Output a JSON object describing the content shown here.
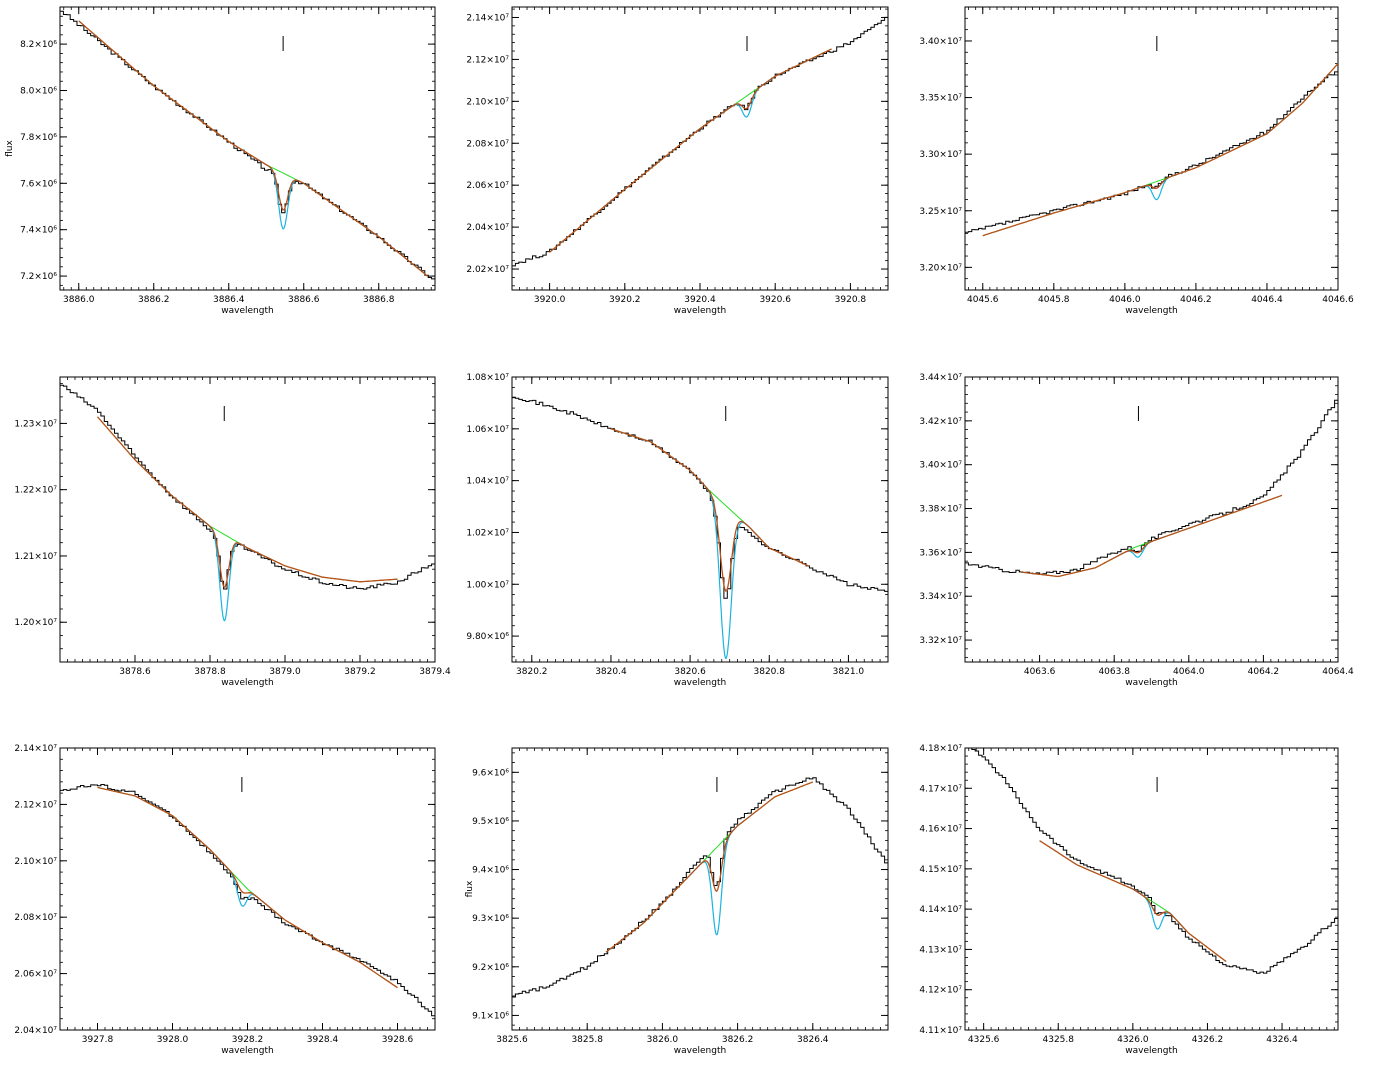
{
  "colors": {
    "data": "#000000",
    "model": "#b8501a",
    "line_model": "#1ab4e0",
    "continuum": "#22dd22",
    "axes": "#000000"
  },
  "chart_data": [
    {
      "type": "line",
      "xlabel": "wavelength",
      "ylabel": "flux",
      "xlim": [
        3885.95,
        3886.95
      ],
      "ylim": [
        7140000.0,
        8360000.0
      ],
      "x_ticks": [
        3886.0,
        3886.2,
        3886.4,
        3886.6,
        3886.8
      ],
      "x_tick_labels": [
        "3886.0",
        "3886.2",
        "3886.4",
        "3886.6",
        "3886.8"
      ],
      "y_ticks": [
        7200000.0,
        7400000.0,
        7600000.0,
        7800000.0,
        8000000.0,
        8200000.0
      ],
      "y_tick_labels": [
        "7.2×10⁶",
        "7.4×10⁶",
        "7.6×10⁶",
        "7.8×10⁶",
        "8.0×10⁶",
        "8.2×10⁶"
      ],
      "marker_x": 3886.545,
      "data_x": [
        3885.95,
        3886.2,
        3886.4,
        3886.5,
        3886.6,
        3886.8,
        3886.95
      ],
      "data_y": [
        8350000.0,
        8020000.0,
        7780000.0,
        7660000.0,
        7600000.0,
        7370000.0,
        7180000.0
      ],
      "continuum_x": [
        3886.0,
        3886.2,
        3886.4,
        3886.5,
        3886.6,
        3886.8,
        3886.93
      ],
      "continuum_y": [
        8300000.0,
        8020000.0,
        7780000.0,
        7680000.0,
        7600000.0,
        7370000.0,
        7200000.0
      ],
      "line_center": 3886.545,
      "line_sigma": 0.012,
      "line_depth_fit": 160000.0,
      "line_depth_model": 240000.0,
      "fit_range": [
        3886.0,
        3886.93
      ]
    },
    {
      "type": "line",
      "xlabel": "wavelength",
      "ylabel": "",
      "xlim": [
        3919.9,
        3920.9
      ],
      "ylim": [
        20100000.0,
        21450000.0
      ],
      "x_ticks": [
        3920.0,
        3920.2,
        3920.4,
        3920.6,
        3920.8
      ],
      "x_tick_labels": [
        "3920.0",
        "3920.2",
        "3920.4",
        "3920.6",
        "3920.8"
      ],
      "y_ticks": [
        20200000.0,
        20400000.0,
        20600000.0,
        20800000.0,
        21000000.0,
        21200000.0,
        21400000.0
      ],
      "y_tick_labels": [
        "2.02×10⁷",
        "2.04×10⁷",
        "2.06×10⁷",
        "2.08×10⁷",
        "2.10×10⁷",
        "2.12×10⁷",
        "2.14×10⁷"
      ],
      "marker_x": 3920.525,
      "data_x": [
        3919.9,
        3920.0,
        3920.2,
        3920.4,
        3920.6,
        3920.8,
        3920.9
      ],
      "data_y": [
        20220000.0,
        20280000.0,
        20580000.0,
        20870000.0,
        21120000.0,
        21280000.0,
        21400000.0
      ],
      "continuum_x": [
        3920.0,
        3920.2,
        3920.4,
        3920.6,
        3920.75
      ],
      "continuum_y": [
        20280000.0,
        20580000.0,
        20870000.0,
        21120000.0,
        21250000.0
      ],
      "line_center": 3920.525,
      "line_sigma": 0.012,
      "line_depth_fit": 60000.0,
      "line_depth_model": 100000.0,
      "fit_range": [
        3920.0,
        3920.75
      ]
    },
    {
      "type": "line",
      "xlabel": "wavelength",
      "ylabel": "",
      "xlim": [
        4045.55,
        4046.6
      ],
      "ylim": [
        31800000.0,
        34300000.0
      ],
      "x_ticks": [
        4045.6,
        4045.8,
        4046.0,
        4046.2,
        4046.4,
        4046.6
      ],
      "x_tick_labels": [
        "4045.6",
        "4045.8",
        "4046.0",
        "4046.2",
        "4046.4",
        "4046.6"
      ],
      "y_ticks": [
        32000000.0,
        32500000.0,
        33000000.0,
        33500000.0,
        34000000.0
      ],
      "y_tick_labels": [
        "3.20×10⁷",
        "3.25×10⁷",
        "3.30×10⁷",
        "3.35×10⁷",
        "3.40×10⁷"
      ],
      "marker_x": 4046.09,
      "data_x": [
        4045.55,
        4045.8,
        4046.0,
        4046.2,
        4046.4,
        4046.5,
        4046.6
      ],
      "data_y": [
        32300000.0,
        32500000.0,
        32650000.0,
        32900000.0,
        33200000.0,
        33500000.0,
        33750000.0
      ],
      "continuum_x": [
        4045.6,
        4045.8,
        4046.0,
        4046.2,
        4046.4,
        4046.5,
        4046.6
      ],
      "continuum_y": [
        32280000.0,
        32480000.0,
        32660000.0,
        32880000.0,
        33180000.0,
        33450000.0,
        33800000.0
      ],
      "line_center": 4046.09,
      "line_sigma": 0.012,
      "line_depth_fit": 60000.0,
      "line_depth_model": 160000.0,
      "fit_range": [
        4045.6,
        4046.6
      ]
    },
    {
      "type": "line",
      "xlabel": "wavelength",
      "ylabel": "",
      "xlim": [
        3878.4,
        3879.4
      ],
      "ylim": [
        11940000.0,
        12370000.0
      ],
      "x_ticks": [
        3878.6,
        3878.8,
        3879.0,
        3879.2,
        3879.4
      ],
      "x_tick_labels": [
        "3878.6",
        "3878.8",
        "3879.0",
        "3879.2",
        "3879.4"
      ],
      "y_ticks": [
        12000000.0,
        12100000.0,
        12200000.0,
        12300000.0
      ],
      "y_tick_labels": [
        "1.20×10⁷",
        "1.21×10⁷",
        "1.22×10⁷",
        "1.23×10⁷"
      ],
      "marker_x": 3878.838,
      "data_x": [
        3878.4,
        3878.5,
        3878.6,
        3878.7,
        3878.8,
        3878.9,
        3879.0,
        3879.1,
        3879.2,
        3879.3,
        3879.4
      ],
      "data_y": [
        12360000.0,
        12320000.0,
        12250000.0,
        12190000.0,
        12140000.0,
        12110000.0,
        12080000.0,
        12060000.0,
        12050000.0,
        12060000.0,
        12090000.0
      ],
      "continuum_x": [
        3878.5,
        3878.6,
        3878.7,
        3878.8,
        3878.9,
        3879.0,
        3879.1,
        3879.2,
        3879.3
      ],
      "continuum_y": [
        12310000.0,
        12245000.0,
        12190000.0,
        12145000.0,
        12112000.0,
        12085000.0,
        12068000.0,
        12061000.0,
        12065000.0
      ],
      "line_center": 3878.838,
      "line_sigma": 0.012,
      "line_depth_fit": 80000.0,
      "line_depth_model": 130000.0,
      "fit_range": [
        3878.5,
        3879.3
      ]
    },
    {
      "type": "line",
      "xlabel": "wavelength",
      "ylabel": "",
      "xlim": [
        3820.15,
        3821.1
      ],
      "ylim": [
        9700000.0,
        10800000.0
      ],
      "x_ticks": [
        3820.2,
        3820.4,
        3820.6,
        3820.8,
        3821.0
      ],
      "x_tick_labels": [
        "3820.2",
        "3820.4",
        "3820.6",
        "3820.8",
        "3821.0"
      ],
      "y_ticks": [
        9800000.0,
        10000000.0,
        10200000.0,
        10400000.0,
        10600000.0,
        10800000.0
      ],
      "y_tick_labels": [
        "9.80×10⁶",
        "1.00×10⁷",
        "1.02×10⁷",
        "1.04×10⁷",
        "1.06×10⁷",
        "1.08×10⁷"
      ],
      "marker_x": 3820.69,
      "data_x": [
        3820.15,
        3820.3,
        3820.4,
        3820.5,
        3820.6,
        3820.7,
        3820.8,
        3820.9,
        3821.0,
        3821.1
      ],
      "data_y": [
        10730000.0,
        10660000.0,
        10600000.0,
        10550000.0,
        10440000.0,
        10260000.0,
        10140000.0,
        10070000.0,
        10000000.0,
        9970000.0
      ],
      "continuum_x": [
        3820.4,
        3820.5,
        3820.6,
        3820.65,
        3820.7,
        3820.75,
        3820.8,
        3820.9
      ],
      "continuum_y": [
        10600000.0,
        10550000.0,
        10440000.0,
        10360000.0,
        10290000.0,
        10220000.0,
        10140000.0,
        10070000.0
      ],
      "line_center": 3820.69,
      "line_sigma": 0.014,
      "line_depth_fit": 330000.0,
      "line_depth_model": 590000.0,
      "fit_range": [
        3820.4,
        3820.9
      ]
    },
    {
      "type": "line",
      "xlabel": "wavelength",
      "ylabel": "",
      "xlim": [
        4063.4,
        4064.4
      ],
      "ylim": [
        33100000.0,
        34400000.0
      ],
      "x_ticks": [
        4063.6,
        4063.8,
        4064.0,
        4064.2,
        4064.4
      ],
      "x_tick_labels": [
        "4063.6",
        "4063.8",
        "4064.0",
        "4064.2",
        "4064.4"
      ],
      "y_ticks": [
        33200000.0,
        33400000.0,
        33600000.0,
        33800000.0,
        34000000.0,
        34200000.0,
        34400000.0
      ],
      "y_tick_labels": [
        "3.32×10⁷",
        "3.34×10⁷",
        "3.36×10⁷",
        "3.38×10⁷",
        "3.40×10⁷",
        "3.42×10⁷",
        "3.44×10⁷"
      ],
      "marker_x": 4063.865,
      "data_x": [
        4063.4,
        4063.5,
        4063.6,
        4063.7,
        4063.8,
        4063.9,
        4064.0,
        4064.1,
        4064.2,
        4064.3,
        4064.4
      ],
      "data_y": [
        33550000.0,
        33520000.0,
        33500000.0,
        33520000.0,
        33600000.0,
        33660000.0,
        33730000.0,
        33780000.0,
        33850000.0,
        34050000.0,
        34300000.0
      ],
      "continuum_x": [
        4063.55,
        4063.65,
        4063.75,
        4063.85,
        4063.95,
        4064.05,
        4064.15,
        4064.25
      ],
      "continuum_y": [
        33510000.0,
        33490000.0,
        33530000.0,
        33620000.0,
        33680000.0,
        33740000.0,
        33800000.0,
        33860000.0
      ],
      "line_center": 4063.865,
      "line_sigma": 0.012,
      "line_depth_fit": 30000.0,
      "line_depth_model": 50000.0,
      "fit_range": [
        4063.55,
        4064.25
      ]
    },
    {
      "type": "line",
      "xlabel": "wavelength",
      "ylabel": "",
      "xlim": [
        3927.7,
        3928.7
      ],
      "ylim": [
        20400000.0,
        21400000.0
      ],
      "x_ticks": [
        3927.8,
        3928.0,
        3928.2,
        3928.4,
        3928.6
      ],
      "x_tick_labels": [
        "3927.8",
        "3928.0",
        "3928.2",
        "3928.4",
        "3928.6"
      ],
      "y_ticks": [
        20400000.0,
        20600000.0,
        20800000.0,
        21000000.0,
        21200000.0,
        21400000.0
      ],
      "y_tick_labels": [
        "2.04×10⁷",
        "2.06×10⁷",
        "2.08×10⁷",
        "2.10×10⁷",
        "2.12×10⁷",
        "2.14×10⁷"
      ],
      "marker_x": 3928.185,
      "data_x": [
        3927.7,
        3927.8,
        3927.9,
        3928.0,
        3928.1,
        3928.2,
        3928.3,
        3928.4,
        3928.5,
        3928.6,
        3928.7
      ],
      "data_y": [
        21250000.0,
        21270000.0,
        21240000.0,
        21160000.0,
        21030000.0,
        20880000.0,
        20780000.0,
        20710000.0,
        20650000.0,
        20570000.0,
        20450000.0
      ],
      "continuum_x": [
        3927.8,
        3927.9,
        3928.0,
        3928.1,
        3928.2,
        3928.3,
        3928.4,
        3928.5,
        3928.6
      ],
      "continuum_y": [
        21260000.0,
        21230000.0,
        21160000.0,
        21040000.0,
        20900000.0,
        20790000.0,
        20710000.0,
        20640000.0,
        20550000.0
      ],
      "line_center": 3928.185,
      "line_sigma": 0.012,
      "line_depth_fit": 30000.0,
      "line_depth_model": 80000.0,
      "fit_range": [
        3927.8,
        3928.6
      ]
    },
    {
      "type": "line",
      "xlabel": "wavelength",
      "ylabel": "flux",
      "xlim": [
        3825.6,
        3826.6
      ],
      "ylim": [
        9070000.0,
        9650000.0
      ],
      "x_ticks": [
        3825.6,
        3825.8,
        3826.0,
        3826.2,
        3826.4
      ],
      "x_tick_labels": [
        "3825.6",
        "3825.8",
        "3826.0",
        "3826.2",
        "3826.4"
      ],
      "y_ticks": [
        9100000.0,
        9200000.0,
        9300000.0,
        9400000.0,
        9500000.0,
        9600000.0
      ],
      "y_tick_labels": [
        "9.1×10⁶",
        "9.2×10⁶",
        "9.3×10⁶",
        "9.4×10⁶",
        "9.5×10⁶",
        "9.6×10⁶"
      ],
      "marker_x": 3826.145,
      "data_x": [
        3825.6,
        3825.7,
        3825.8,
        3825.9,
        3826.0,
        3826.1,
        3826.2,
        3826.3,
        3826.4,
        3826.5,
        3826.6
      ],
      "data_y": [
        9140000.0,
        9160000.0,
        9200000.0,
        9260000.0,
        9330000.0,
        9420000.0,
        9500000.0,
        9560000.0,
        9590000.0,
        9520000.0,
        9410000.0
      ],
      "continuum_x": [
        3825.85,
        3825.95,
        3826.05,
        3826.1,
        3826.15,
        3826.2,
        3826.3,
        3826.4
      ],
      "continuum_y": [
        9230000.0,
        9290000.0,
        9370000.0,
        9410000.0,
        9450000.0,
        9490000.0,
        9550000.0,
        9580000.0
      ],
      "line_center": 3826.145,
      "line_sigma": 0.012,
      "line_depth_fit": 90000.0,
      "line_depth_model": 180000.0,
      "fit_range": [
        3825.85,
        3826.4
      ]
    },
    {
      "type": "line",
      "xlabel": "wavelength",
      "ylabel": "",
      "xlim": [
        4325.55,
        4326.55
      ],
      "ylim": [
        41100000.0,
        41800000.0
      ],
      "x_ticks": [
        4325.6,
        4325.8,
        4326.0,
        4326.2,
        4326.4
      ],
      "x_tick_labels": [
        "4325.6",
        "4325.8",
        "4326.0",
        "4326.2",
        "4326.4"
      ],
      "y_ticks": [
        41100000.0,
        41200000.0,
        41300000.0,
        41400000.0,
        41500000.0,
        41600000.0,
        41700000.0,
        41800000.0
      ],
      "y_tick_labels": [
        "4.11×10⁷",
        "4.12×10⁷",
        "4.13×10⁷",
        "4.14×10⁷",
        "4.15×10⁷",
        "4.16×10⁷",
        "4.17×10⁷",
        "4.18×10⁷"
      ],
      "marker_x": 4326.065,
      "data_x": [
        4325.55,
        4325.65,
        4325.75,
        4325.85,
        4325.95,
        4326.05,
        4326.15,
        4326.25,
        4326.35,
        4326.45,
        4326.55
      ],
      "data_y": [
        41820000.0,
        41730000.0,
        41600000.0,
        41520000.0,
        41480000.0,
        41430000.0,
        41330000.0,
        41260000.0,
        41240000.0,
        41300000.0,
        41380000.0
      ],
      "continuum_x": [
        4325.75,
        4325.85,
        4325.95,
        4326.0,
        4326.05,
        4326.1,
        4326.15,
        4326.25
      ],
      "continuum_y": [
        41570000.0,
        41510000.0,
        41470000.0,
        41450000.0,
        41420000.0,
        41390000.0,
        41340000.0,
        41270000.0
      ],
      "line_center": 4326.065,
      "line_sigma": 0.012,
      "line_depth_fit": 25000.0,
      "line_depth_model": 60000.0,
      "fit_range": [
        4325.75,
        4326.25
      ]
    }
  ]
}
